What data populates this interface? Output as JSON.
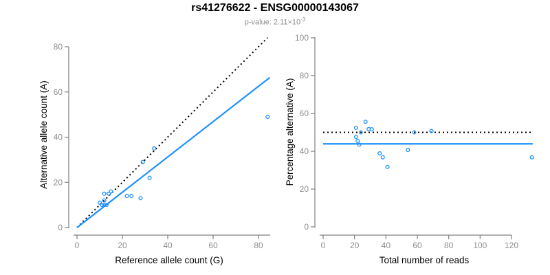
{
  "figure": {
    "title": "rs41276622 - ENSG00000143067",
    "pvalue_prefix": "p-value: ",
    "pvalue_mantissa": "2.11×10",
    "pvalue_exponent": "-3"
  },
  "colors": {
    "accent_blue": "#1E90FF",
    "line_black": "#000000",
    "axis_gray": "#7f7f7f",
    "tick_label_gray": "#8e8e8e",
    "axis_title_black": "#000000"
  },
  "chart_data": [
    {
      "type": "scatter",
      "name": "allele-count-scatter",
      "xlabel": "Reference allele count (G)",
      "ylabel": "Alternative allele count (A)",
      "xlim": [
        0,
        85
      ],
      "ylim": [
        0,
        84
      ],
      "xticks": [
        0,
        20,
        40,
        60,
        80
      ],
      "yticks": [
        0,
        20,
        40,
        60,
        80
      ],
      "grid": false,
      "legend": false,
      "points": [
        [
          84,
          49
        ],
        [
          34,
          35
        ],
        [
          29,
          29
        ],
        [
          32,
          22
        ],
        [
          12,
          15
        ],
        [
          14,
          15
        ],
        [
          15,
          16
        ],
        [
          10,
          11
        ],
        [
          12,
          12
        ],
        [
          11,
          10
        ],
        [
          12,
          10
        ],
        [
          13,
          10
        ],
        [
          22,
          14
        ],
        [
          24,
          14
        ],
        [
          28,
          13
        ]
      ],
      "lines": [
        {
          "name": "identity-line",
          "style": "dotted",
          "color": "#000000",
          "x1": 0,
          "y1": 0,
          "x2": 84,
          "y2": 84
        },
        {
          "name": "fit-line",
          "style": "solid",
          "color": "#1E90FF",
          "x1": 0,
          "y1": 0,
          "x2": 85,
          "y2": 66.4
        }
      ]
    },
    {
      "type": "scatter",
      "name": "percentage-alternative-scatter",
      "xlabel": "Total number of reads",
      "ylabel": "Percentage alternative (A)",
      "xlim": [
        0,
        134
      ],
      "ylim": [
        0,
        100
      ],
      "xticks": [
        0,
        20,
        40,
        60,
        80,
        100,
        120
      ],
      "yticks": [
        0,
        20,
        40,
        60,
        80,
        100
      ],
      "grid": false,
      "legend": false,
      "points": [
        [
          133,
          36.8
        ],
        [
          69,
          50.7
        ],
        [
          58,
          50.0
        ],
        [
          54,
          40.7
        ],
        [
          27,
          55.6
        ],
        [
          29,
          51.7
        ],
        [
          31,
          51.6
        ],
        [
          21,
          52.4
        ],
        [
          24,
          50.0
        ],
        [
          21,
          47.6
        ],
        [
          22,
          45.5
        ],
        [
          23,
          43.5
        ],
        [
          36,
          38.9
        ],
        [
          38,
          36.8
        ],
        [
          41,
          31.7
        ]
      ],
      "lines": [
        {
          "name": "null-50-percent-line",
          "style": "dotted",
          "color": "#000000",
          "x1": 0,
          "y1": 50,
          "x2": 133.5,
          "y2": 50
        },
        {
          "name": "observed-percent-line",
          "style": "solid",
          "color": "#1E90FF",
          "x1": 0,
          "y1": 43.9,
          "x2": 133.5,
          "y2": 43.9
        }
      ]
    }
  ]
}
